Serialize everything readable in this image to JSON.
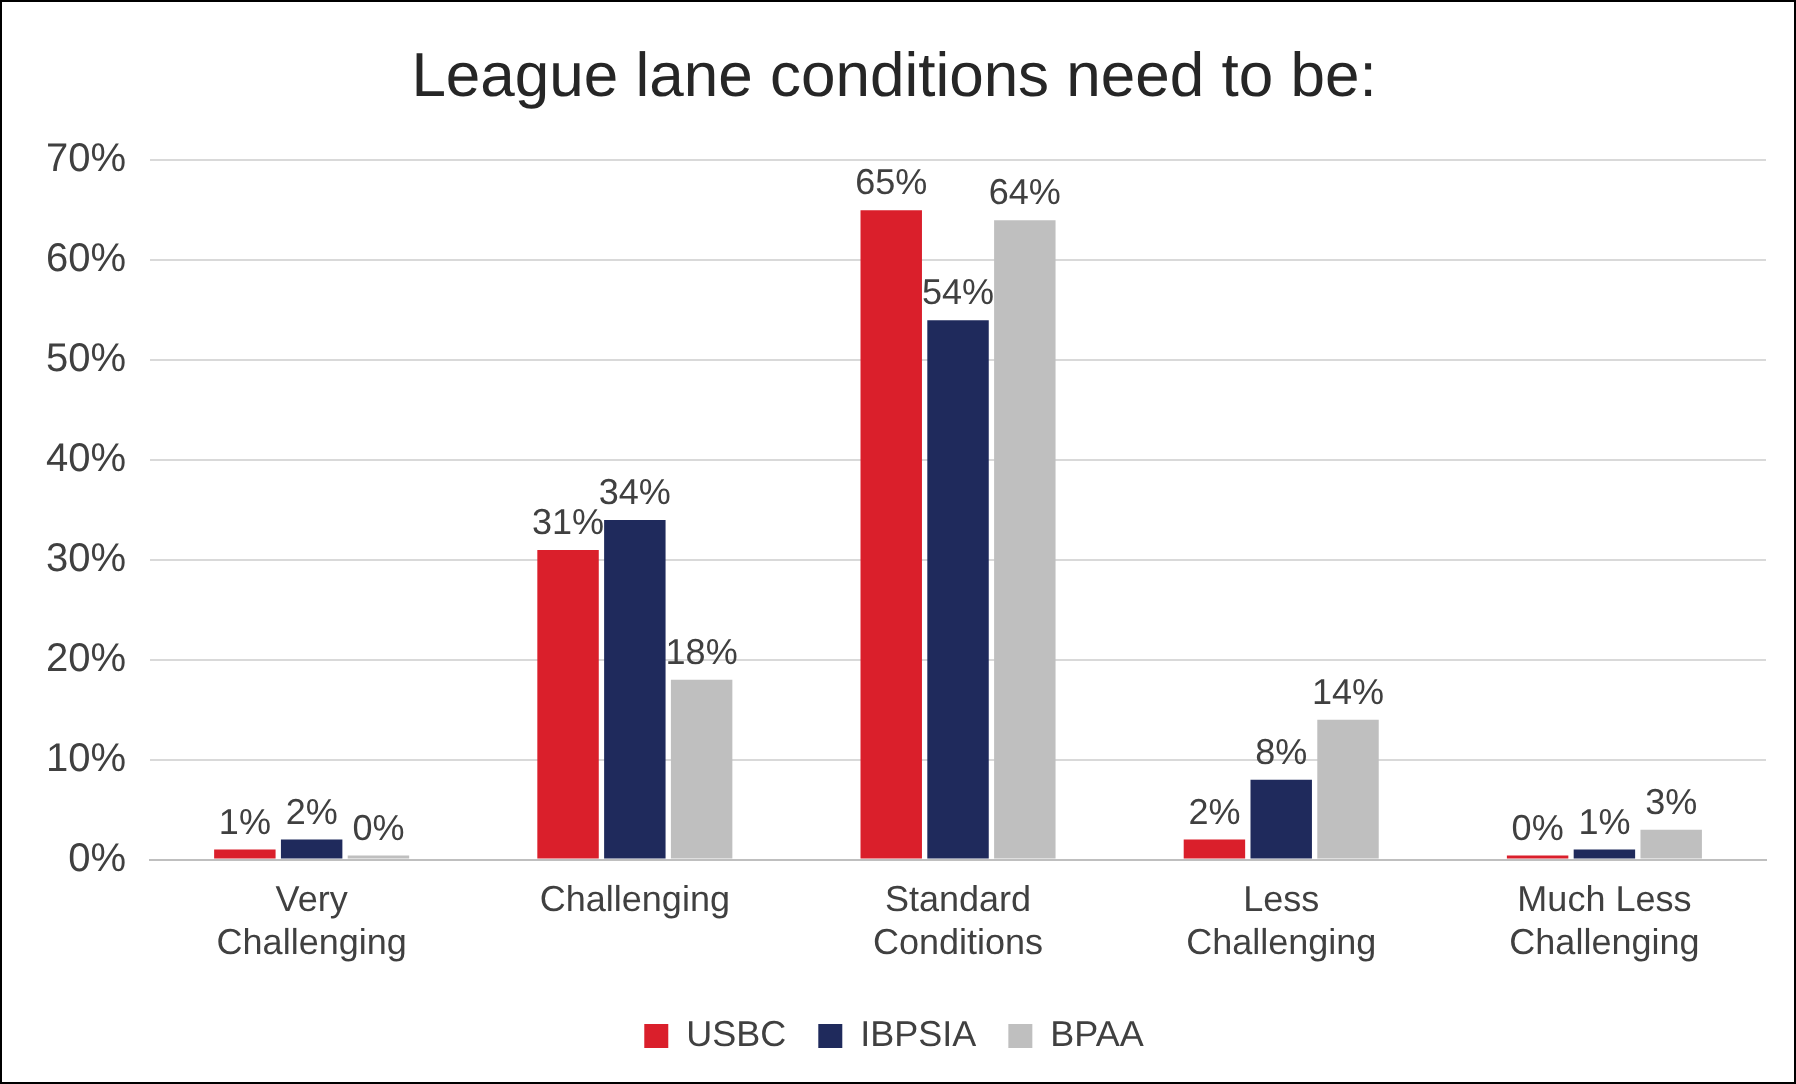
{
  "chart_data": {
    "type": "bar",
    "title": "League lane conditions need to be:",
    "categories": [
      "Very Challenging",
      "Challenging",
      "Standard Conditions",
      "Less Challenging",
      "Much Less Challenging"
    ],
    "series": [
      {
        "name": "USBC",
        "color": "#da1f2b",
        "values": [
          1,
          31,
          65,
          2,
          0
        ],
        "value_labels": [
          "1%",
          "31%",
          "65%",
          "2%",
          "0%"
        ]
      },
      {
        "name": "IBPSIA",
        "color": "#1f2a5c",
        "values": [
          2,
          34,
          54,
          8,
          1
        ],
        "value_labels": [
          "2%",
          "34%",
          "54%",
          "8%",
          "1%"
        ]
      },
      {
        "name": "BPAA",
        "color": "#bfbfbf",
        "values": [
          0,
          18,
          64,
          14,
          3
        ],
        "value_labels": [
          "0%",
          "18%",
          "64%",
          "14%",
          "3%"
        ]
      }
    ],
    "ylim": [
      0,
      70
    ],
    "yticks": [
      {
        "value": 0,
        "label": "0%"
      },
      {
        "value": 10,
        "label": "10%"
      },
      {
        "value": 20,
        "label": "20%"
      },
      {
        "value": 30,
        "label": "30%"
      },
      {
        "value": 40,
        "label": "40%"
      },
      {
        "value": 50,
        "label": "50%"
      },
      {
        "value": 60,
        "label": "60%"
      },
      {
        "value": 70,
        "label": "70%"
      }
    ],
    "grid": "y",
    "legend": "bottom"
  }
}
